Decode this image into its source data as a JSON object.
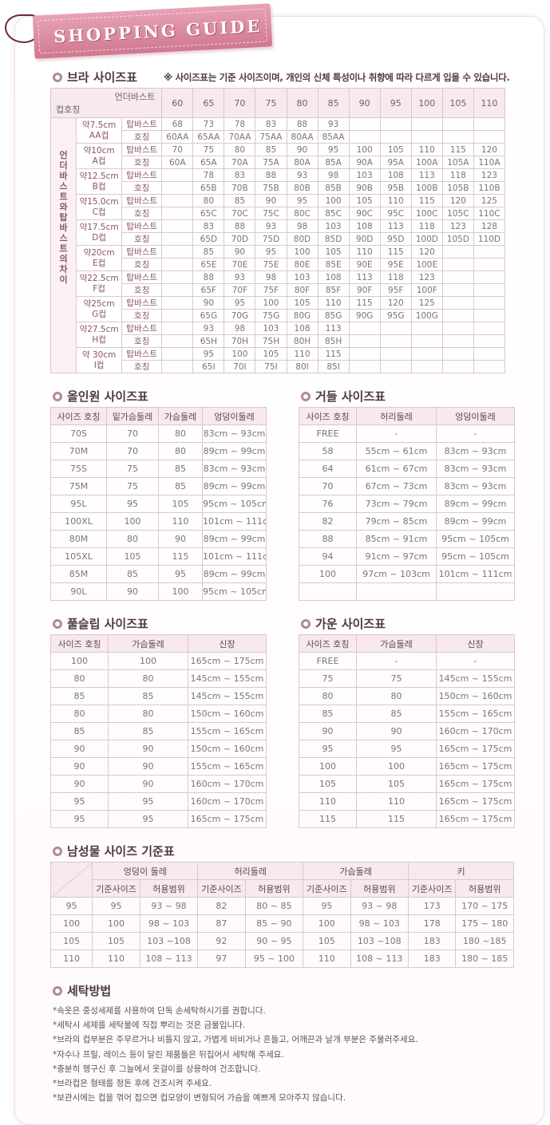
{
  "logo": {
    "text": "SHOPPING GUIDE"
  },
  "colors": {
    "accent": "#d07890",
    "header_bg": "#f7e9ed",
    "border": "#dcc6cc",
    "title": "#4e3a40"
  },
  "bra": {
    "title": "브라 사이즈표",
    "note": "※ 사이즈표는 기준 사이즈이며, 개인의 신체 특성이나 취향에 따라 다르게 입을 수 있습니다.",
    "corner_top": "언더바스트",
    "corner_bottom": "컵호칭",
    "side_label": "언더바스트와탑바스트의차이",
    "columns": [
      "60",
      "65",
      "70",
      "75",
      "80",
      "85",
      "90",
      "95",
      "100",
      "105",
      "110"
    ],
    "row_labels": [
      "탑바스트",
      "호칭"
    ],
    "cups": [
      {
        "diff": "약7.5cm",
        "cup": "AA컵",
        "top": [
          "68",
          "73",
          "78",
          "83",
          "88",
          "93",
          "",
          "",
          "",
          "",
          ""
        ],
        "code": [
          "60AA",
          "65AA",
          "70AA",
          "75AA",
          "80AA",
          "85AA",
          "",
          "",
          "",
          "",
          ""
        ]
      },
      {
        "diff": "약10cm",
        "cup": "A컵",
        "top": [
          "70",
          "75",
          "80",
          "85",
          "90",
          "95",
          "100",
          "105",
          "110",
          "115",
          "120"
        ],
        "code": [
          "60A",
          "65A",
          "70A",
          "75A",
          "80A",
          "85A",
          "90A",
          "95A",
          "100A",
          "105A",
          "110A"
        ]
      },
      {
        "diff": "약12.5cm",
        "cup": "B컵",
        "top": [
          "",
          "78",
          "83",
          "88",
          "93",
          "98",
          "103",
          "108",
          "113",
          "118",
          "123"
        ],
        "code": [
          "",
          "65B",
          "70B",
          "75B",
          "80B",
          "85B",
          "90B",
          "95B",
          "100B",
          "105B",
          "110B"
        ]
      },
      {
        "diff": "약15.0cm",
        "cup": "C컵",
        "top": [
          "",
          "80",
          "85",
          "90",
          "95",
          "100",
          "105",
          "110",
          "115",
          "120",
          "125"
        ],
        "code": [
          "",
          "65C",
          "70C",
          "75C",
          "80C",
          "85C",
          "90C",
          "95C",
          "100C",
          "105C",
          "110C"
        ]
      },
      {
        "diff": "약17.5cm",
        "cup": "D컵",
        "top": [
          "",
          "83",
          "88",
          "93",
          "98",
          "103",
          "108",
          "113",
          "118",
          "123",
          "128"
        ],
        "code": [
          "",
          "65D",
          "70D",
          "75D",
          "80D",
          "85D",
          "90D",
          "95D",
          "100D",
          "105D",
          "110D"
        ]
      },
      {
        "diff": "약20cm",
        "cup": "E컵",
        "top": [
          "",
          "85",
          "90",
          "95",
          "100",
          "105",
          "110",
          "115",
          "120",
          "",
          ""
        ],
        "code": [
          "",
          "65E",
          "70E",
          "75E",
          "80E",
          "85E",
          "90E",
          "95E",
          "100E",
          "",
          ""
        ]
      },
      {
        "diff": "약22.5cm",
        "cup": "F컵",
        "top": [
          "",
          "88",
          "93",
          "98",
          "103",
          "108",
          "113",
          "118",
          "123",
          "",
          ""
        ],
        "code": [
          "",
          "65F",
          "70F",
          "75F",
          "80F",
          "85F",
          "90F",
          "95F",
          "100F",
          "",
          ""
        ]
      },
      {
        "diff": "약25cm",
        "cup": "G컵",
        "top": [
          "",
          "90",
          "95",
          "100",
          "105",
          "110",
          "115",
          "120",
          "125",
          "",
          ""
        ],
        "code": [
          "",
          "65G",
          "70G",
          "75G",
          "80G",
          "85G",
          "90G",
          "95G",
          "100G",
          "",
          ""
        ]
      },
      {
        "diff": "약27.5cm",
        "cup": "H컵",
        "top": [
          "",
          "93",
          "98",
          "103",
          "108",
          "113",
          "",
          "",
          "",
          "",
          ""
        ],
        "code": [
          "",
          "65H",
          "70H",
          "75H",
          "80H",
          "85H",
          "",
          "",
          "",
          "",
          ""
        ]
      },
      {
        "diff": "약 30cm",
        "cup": "I컵",
        "top": [
          "",
          "95",
          "100",
          "105",
          "110",
          "115",
          "",
          "",
          "",
          "",
          ""
        ],
        "code": [
          "",
          "65I",
          "70I",
          "75I",
          "80I",
          "85I",
          "",
          "",
          "",
          "",
          ""
        ]
      }
    ]
  },
  "onepiece": {
    "title": "올인원 사이즈표",
    "headers": [
      "사이즈 호칭",
      "밑가슴둘레",
      "가슴둘레",
      "엉덩이둘레"
    ],
    "rows": [
      [
        "70S",
        "70",
        "80",
        "83cm ~ 93cm"
      ],
      [
        "70M",
        "70",
        "80",
        "89cm ~ 99cm"
      ],
      [
        "75S",
        "75",
        "85",
        "83cm ~ 93cm"
      ],
      [
        "75M",
        "75",
        "85",
        "89cm ~ 99cm"
      ],
      [
        "95L",
        "95",
        "105",
        "95cm ~ 105cm"
      ],
      [
        "100XL",
        "100",
        "110",
        "101cm ~ 111cm"
      ],
      [
        "80M",
        "80",
        "90",
        "89cm ~ 99cm"
      ],
      [
        "105XL",
        "105",
        "115",
        "101cm ~ 111cm"
      ],
      [
        "85M",
        "85",
        "95",
        "89cm ~ 99cm"
      ],
      [
        "90L",
        "90",
        "100",
        "95cm ~ 105cm"
      ]
    ]
  },
  "girdle": {
    "title": "거들 사이즈표",
    "headers": [
      "사이즈 호칭",
      "허리둘레",
      "엉덩이둘레"
    ],
    "rows": [
      [
        "FREE",
        "-",
        "-"
      ],
      [
        "58",
        "55cm ~ 61cm",
        "83cm ~ 93cm"
      ],
      [
        "64",
        "61cm ~ 67cm",
        "83cm ~ 93cm"
      ],
      [
        "70",
        "67cm ~ 73cm",
        "83cm ~ 93cm"
      ],
      [
        "76",
        "73cm ~ 79cm",
        "89cm ~ 99cm"
      ],
      [
        "82",
        "79cm ~ 85cm",
        "89cm ~ 99cm"
      ],
      [
        "88",
        "85cm ~ 91cm",
        "95cm ~ 105cm"
      ],
      [
        "94",
        "91cm ~ 97cm",
        "95cm ~ 105cm"
      ],
      [
        "100",
        "97cm ~ 103cm",
        "101cm ~ 111cm"
      ],
      [
        "",
        "",
        ""
      ]
    ]
  },
  "slip": {
    "title": "풀슬립 사이즈표",
    "headers": [
      "사이즈 호칭",
      "가슴둘레",
      "신장"
    ],
    "rows": [
      [
        "100",
        "100",
        "165cm ~ 175cm"
      ],
      [
        "80",
        "80",
        "145cm ~ 155cm"
      ],
      [
        "85",
        "85",
        "145cm ~ 155cm"
      ],
      [
        "80",
        "80",
        "150cm ~ 160cm"
      ],
      [
        "85",
        "85",
        "155cm ~ 165cm"
      ],
      [
        "90",
        "90",
        "150cm ~ 160cm"
      ],
      [
        "90",
        "90",
        "155cm ~ 165cm"
      ],
      [
        "90",
        "90",
        "160cm ~ 170cm"
      ],
      [
        "95",
        "95",
        "160cm ~ 170cm"
      ],
      [
        "95",
        "95",
        "165cm ~ 175cm"
      ]
    ]
  },
  "gown": {
    "title": "가운 사이즈표",
    "headers": [
      "사이즈 호칭",
      "가슴둘레",
      "신장"
    ],
    "rows": [
      [
        "FREE",
        "-",
        "-"
      ],
      [
        "75",
        "75",
        "145cm ~ 155cm"
      ],
      [
        "80",
        "80",
        "150cm ~ 160cm"
      ],
      [
        "85",
        "85",
        "155cm ~ 165cm"
      ],
      [
        "90",
        "90",
        "160cm ~ 170cm"
      ],
      [
        "95",
        "95",
        "165cm ~ 175cm"
      ],
      [
        "100",
        "100",
        "165cm ~ 175cm"
      ],
      [
        "105",
        "105",
        "165cm ~ 175cm"
      ],
      [
        "110",
        "110",
        "165cm ~ 175cm"
      ],
      [
        "115",
        "115",
        "165cm ~ 175cm"
      ]
    ]
  },
  "men": {
    "title": "남성물 사이즈 기준표",
    "groups": [
      "엉덩이 둘레",
      "허리둘레",
      "가슴둘레",
      "키"
    ],
    "sub": [
      "기준사이즈",
      "허용범위"
    ],
    "rows": [
      [
        "95",
        "95",
        "93 ~ 98",
        "82",
        "80 ~ 85",
        "95",
        "93 ~ 98",
        "173",
        "170 ~ 175"
      ],
      [
        "100",
        "100",
        "98 ~ 103",
        "87",
        "85 ~ 90",
        "100",
        "98 ~ 103",
        "178",
        "175 ~ 180"
      ],
      [
        "105",
        "105",
        "103 ~108",
        "92",
        "90 ~ 95",
        "105",
        "103 ~108",
        "183",
        "180 ~185"
      ],
      [
        "110",
        "110",
        "108 ~ 113",
        "97",
        "95 ~ 100",
        "110",
        "108 ~ 113",
        "183",
        "180 ~ 185"
      ]
    ]
  },
  "care": {
    "title": "세탁방법",
    "lines": [
      "*속옷은 중성세제를 사용하여 단독 손세탁하시기를 권합니다.",
      "*세탁시 세제를 세탁물에 직접 뿌리는 것은 금물입니다.",
      "*브라의 컵부분은 주무르거나 비틀지 않고, 가볍게 비비거나 흔들고, 어깨끈과 날개 부분은 주물러주세요.",
      "*자수나 프릴, 레이스 등이 달린 제품들은 뒤집어서 세탁해 주세요.",
      "*충분히 헹구신 후 그늘에서 옷걸이를 상용하여 건조합니다.",
      "*브라컵은 형태를 정돈 후에 건조시켜 주세요.",
      "*보관시에는 컵을 꺾어 접으면 컵모양이 변형되어 가슴을 예쁘게 모아주지 않습니다."
    ]
  }
}
